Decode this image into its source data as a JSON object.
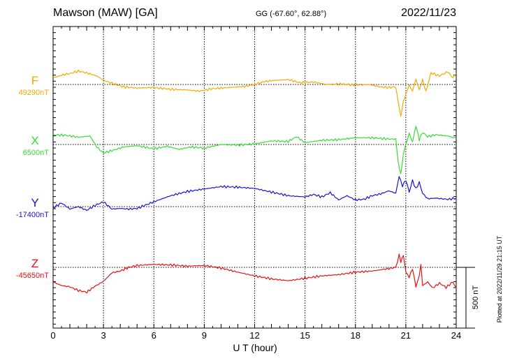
{
  "header": {
    "station": "Mawson (MAW)  [GA]",
    "coords": "GG (-67.60°,  62.88°)",
    "date": "2022/11/23"
  },
  "footer": {
    "plotted": "Plotted at 2022/11/29 21:15 UT"
  },
  "chart_data": {
    "type": "line",
    "xlabel": "U T (hour)",
    "xlim": [
      0,
      24
    ],
    "xticks": [
      0,
      3,
      6,
      9,
      12,
      15,
      18,
      21,
      24
    ],
    "grid": true,
    "scale_bar": {
      "label": "500 nT",
      "value": 500
    },
    "series": [
      {
        "name": "F",
        "baseline_label": "49290nT",
        "baseline": 49290,
        "color": "#f5a800",
        "x": [
          0,
          0.6,
          1.0,
          1.5,
          2.0,
          2.6,
          3.0,
          3.6,
          4.2,
          5.0,
          6.0,
          7.0,
          8.0,
          8.7,
          9.5,
          10.5,
          11.5,
          12.0,
          12.6,
          13.3,
          14.0,
          14.7,
          15.5,
          16.3,
          17.0,
          18.0,
          18.8,
          19.5,
          20.0,
          20.4,
          20.55,
          20.7,
          20.85,
          21.0,
          21.2,
          21.4,
          21.6,
          21.8,
          22.0,
          22.2,
          22.5,
          23.0,
          23.5,
          23.8,
          24.0
        ],
        "values": [
          49345,
          49370,
          49380,
          49400,
          49385,
          49360,
          49325,
          49295,
          49270,
          49260,
          49265,
          49250,
          49245,
          49235,
          49255,
          49265,
          49275,
          49290,
          49315,
          49325,
          49330,
          49305,
          49310,
          49290,
          49295,
          49285,
          49290,
          49270,
          49265,
          49270,
          49140,
          49020,
          49150,
          49210,
          49285,
          49235,
          49335,
          49245,
          49330,
          49230,
          49385,
          49360,
          49395,
          49345,
          49380
        ]
      },
      {
        "name": "X",
        "baseline_label": "6500nT",
        "baseline": 6500,
        "color": "#33dd33",
        "x": [
          0,
          0.8,
          1.5,
          2.2,
          2.6,
          3.0,
          3.5,
          4.2,
          5.0,
          6.0,
          6.8,
          7.5,
          8.2,
          9.0,
          10.0,
          11.0,
          12.0,
          13.0,
          14.0,
          14.5,
          15.0,
          16.0,
          17.0,
          18.0,
          19.0,
          20.0,
          20.4,
          20.55,
          20.7,
          20.85,
          21.0,
          21.2,
          21.4,
          21.6,
          21.8,
          22.0,
          22.3,
          22.8,
          23.5,
          24.0
        ],
        "values": [
          6580,
          6575,
          6560,
          6570,
          6480,
          6430,
          6450,
          6480,
          6490,
          6465,
          6485,
          6460,
          6480,
          6470,
          6500,
          6495,
          6505,
          6530,
          6525,
          6565,
          6515,
          6535,
          6540,
          6555,
          6555,
          6545,
          6545,
          6350,
          6260,
          6420,
          6500,
          6590,
          6520,
          6655,
          6540,
          6600,
          6565,
          6580,
          6570,
          6550
        ]
      },
      {
        "name": "Y",
        "baseline_label": "-17400nT",
        "baseline": -17400,
        "color": "#1414d2",
        "x": [
          0,
          0.5,
          1.0,
          1.5,
          2.0,
          2.5,
          3.0,
          3.5,
          4.0,
          4.5,
          5.0,
          6.0,
          7.0,
          8.0,
          9.0,
          10.0,
          11.0,
          12.0,
          13.0,
          14.0,
          15.0,
          15.5,
          16.0,
          16.5,
          17.0,
          17.5,
          18.0,
          18.5,
          19.0,
          19.5,
          20.0,
          20.4,
          20.6,
          20.8,
          21.0,
          21.2,
          21.4,
          21.6,
          21.8,
          22.0,
          22.3,
          22.8,
          23.5,
          24.0
        ],
        "values": [
          -17410,
          -17370,
          -17420,
          -17400,
          -17430,
          -17390,
          -17360,
          -17420,
          -17415,
          -17420,
          -17415,
          -17360,
          -17310,
          -17275,
          -17255,
          -17235,
          -17240,
          -17250,
          -17280,
          -17310,
          -17320,
          -17300,
          -17320,
          -17285,
          -17345,
          -17310,
          -17345,
          -17340,
          -17310,
          -17295,
          -17270,
          -17290,
          -17150,
          -17230,
          -17180,
          -17280,
          -17185,
          -17255,
          -17200,
          -17290,
          -17335,
          -17330,
          -17340,
          -17330
        ]
      },
      {
        "name": "Z",
        "baseline_label": "-45650nT",
        "baseline": -45650,
        "color": "#e81010",
        "x": [
          0,
          0.5,
          1.0,
          1.5,
          2.0,
          2.5,
          3.0,
          3.5,
          4.0,
          4.5,
          5.0,
          6.0,
          7.0,
          8.0,
          9.0,
          10.0,
          11.0,
          12.0,
          13.0,
          14.0,
          15.0,
          16.0,
          17.0,
          18.0,
          19.0,
          20.0,
          20.4,
          20.6,
          20.7,
          20.85,
          21.0,
          21.2,
          21.4,
          21.6,
          21.8,
          21.9,
          22.0,
          22.3,
          22.6,
          23.0,
          23.4,
          23.8,
          24.0
        ],
        "values": [
          -45770,
          -45800,
          -45810,
          -45840,
          -45855,
          -45805,
          -45765,
          -45695,
          -45680,
          -45650,
          -45635,
          -45625,
          -45630,
          -45640,
          -45635,
          -45655,
          -45690,
          -45720,
          -45745,
          -45760,
          -45740,
          -45720,
          -45710,
          -45690,
          -45680,
          -45660,
          -45650,
          -45550,
          -45600,
          -45545,
          -45690,
          -45730,
          -45660,
          -45810,
          -45720,
          -45625,
          -45800,
          -45770,
          -45820,
          -45780,
          -45815,
          -45770,
          -45820
        ]
      }
    ]
  }
}
